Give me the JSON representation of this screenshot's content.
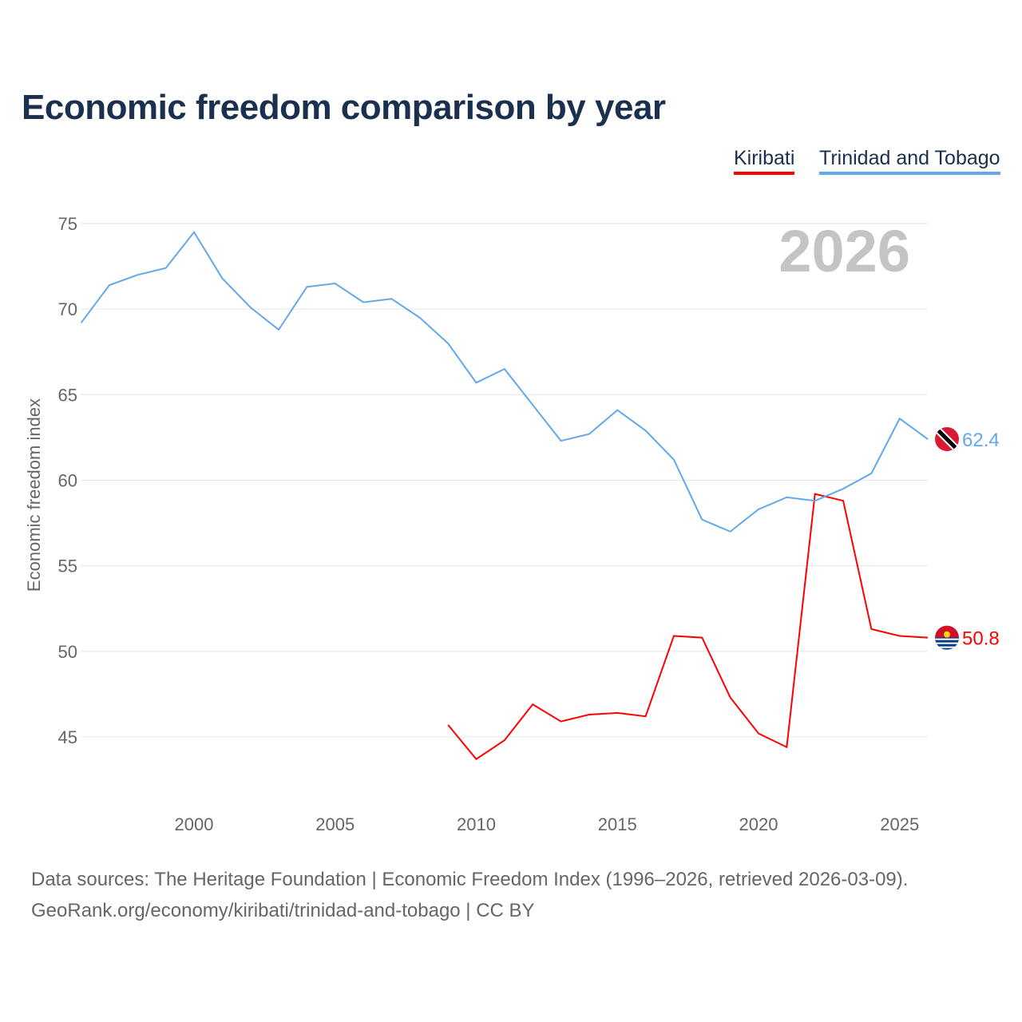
{
  "chart_data": {
    "type": "line",
    "title": "Economic freedom comparison by year",
    "ylabel": "Economic freedom index",
    "xlabel": "",
    "xlim": [
      1996,
      2026
    ],
    "ylim": [
      41,
      77
    ],
    "x_ticks": [
      2000,
      2005,
      2010,
      2015,
      2020,
      2025
    ],
    "y_ticks": [
      45,
      50,
      55,
      60,
      65,
      70,
      75
    ],
    "year_label": "2026",
    "legend": [
      "Kiribati",
      "Trinidad and Tobago"
    ],
    "series": [
      {
        "name": "Kiribati",
        "color": "#ff0000",
        "end_label": "50.8",
        "x": [
          2009,
          2010,
          2011,
          2012,
          2013,
          2014,
          2015,
          2016,
          2017,
          2018,
          2019,
          2020,
          2021,
          2022,
          2023,
          2024,
          2025,
          2026
        ],
        "values": [
          45.7,
          43.7,
          44.8,
          46.9,
          45.9,
          46.3,
          46.4,
          46.2,
          50.9,
          50.8,
          47.3,
          45.2,
          44.4,
          59.2,
          58.8,
          51.3,
          50.9,
          50.8
        ]
      },
      {
        "name": "Trinidad and Tobago",
        "color": "#62a8ea",
        "end_label": "62.4",
        "x": [
          1996,
          1997,
          1998,
          1999,
          2000,
          2001,
          2002,
          2003,
          2004,
          2005,
          2006,
          2007,
          2008,
          2009,
          2010,
          2011,
          2012,
          2013,
          2014,
          2015,
          2016,
          2017,
          2018,
          2019,
          2020,
          2021,
          2022,
          2023,
          2024,
          2025,
          2026
        ],
        "values": [
          69.2,
          71.4,
          72.0,
          72.4,
          74.5,
          71.8,
          70.1,
          68.8,
          71.3,
          71.5,
          70.4,
          70.6,
          69.5,
          68.0,
          65.7,
          66.5,
          64.4,
          62.3,
          62.7,
          64.1,
          62.9,
          61.2,
          57.7,
          57.0,
          58.3,
          59.0,
          58.8,
          59.5,
          60.4,
          63.6,
          62.4
        ]
      }
    ]
  },
  "footer": {
    "sources": "Data sources: The Heritage Foundation | Economic Freedom Index (1996–2026, retrieved 2026-03-09).",
    "url": "GeoRank.org/economy/kiribati/trinidad-and-tobago | CC BY"
  }
}
